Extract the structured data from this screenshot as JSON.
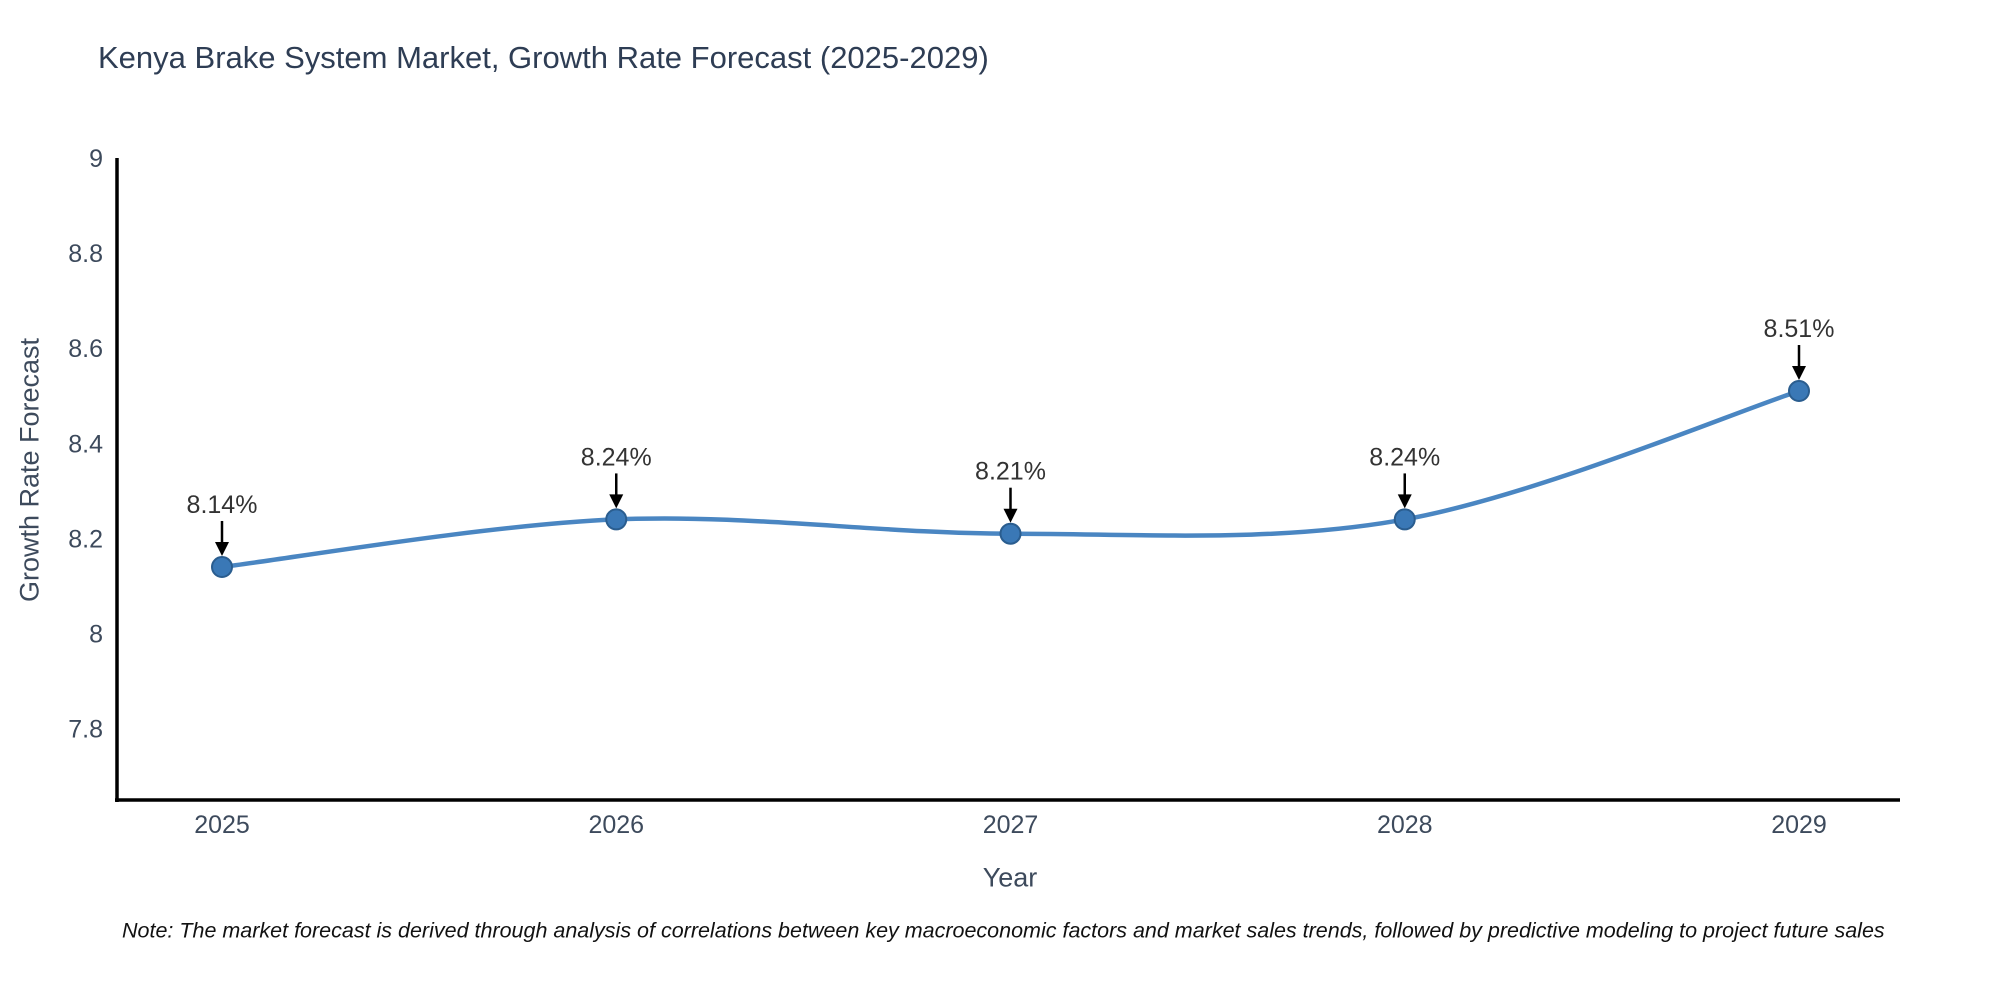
{
  "chart_data": {
    "type": "line",
    "title": "Kenya Brake System Market, Growth Rate Forecast (2025-2029)",
    "xlabel": "Year",
    "ylabel": "Growth Rate Forecast",
    "categories": [
      "2025",
      "2026",
      "2027",
      "2028",
      "2029"
    ],
    "series": [
      {
        "name": "Growth Rate Forecast",
        "values": [
          8.14,
          8.24,
          8.21,
          8.24,
          8.51
        ]
      }
    ],
    "point_labels": [
      "8.14%",
      "8.24%",
      "8.21%",
      "8.24%",
      "8.51%"
    ],
    "ylim": [
      7.65,
      9.0
    ],
    "yticks": [
      9,
      8.8,
      8.6,
      8.4,
      8.2,
      8,
      7.8
    ],
    "ytick_labels": [
      "9",
      "8.8",
      "8.6",
      "8.4",
      "8.2",
      "8",
      "7.8"
    ],
    "grid": false,
    "legend_position": "none",
    "line_shape": "spline",
    "colors": {
      "line": "#4a86c2",
      "marker_fill": "#3a78b6",
      "marker_edge": "#2a5d8f",
      "axis_line": "#000000",
      "title_text": "#2e3d54",
      "axis_text": "#3d4a5c",
      "annotation_text": "#333333",
      "annotation_arrow": "#000000",
      "background": "#ffffff"
    }
  },
  "note": "Note: The market forecast is derived through analysis of correlations between key macroeconomic factors and market sales trends, followed by predictive modeling to project future sales"
}
